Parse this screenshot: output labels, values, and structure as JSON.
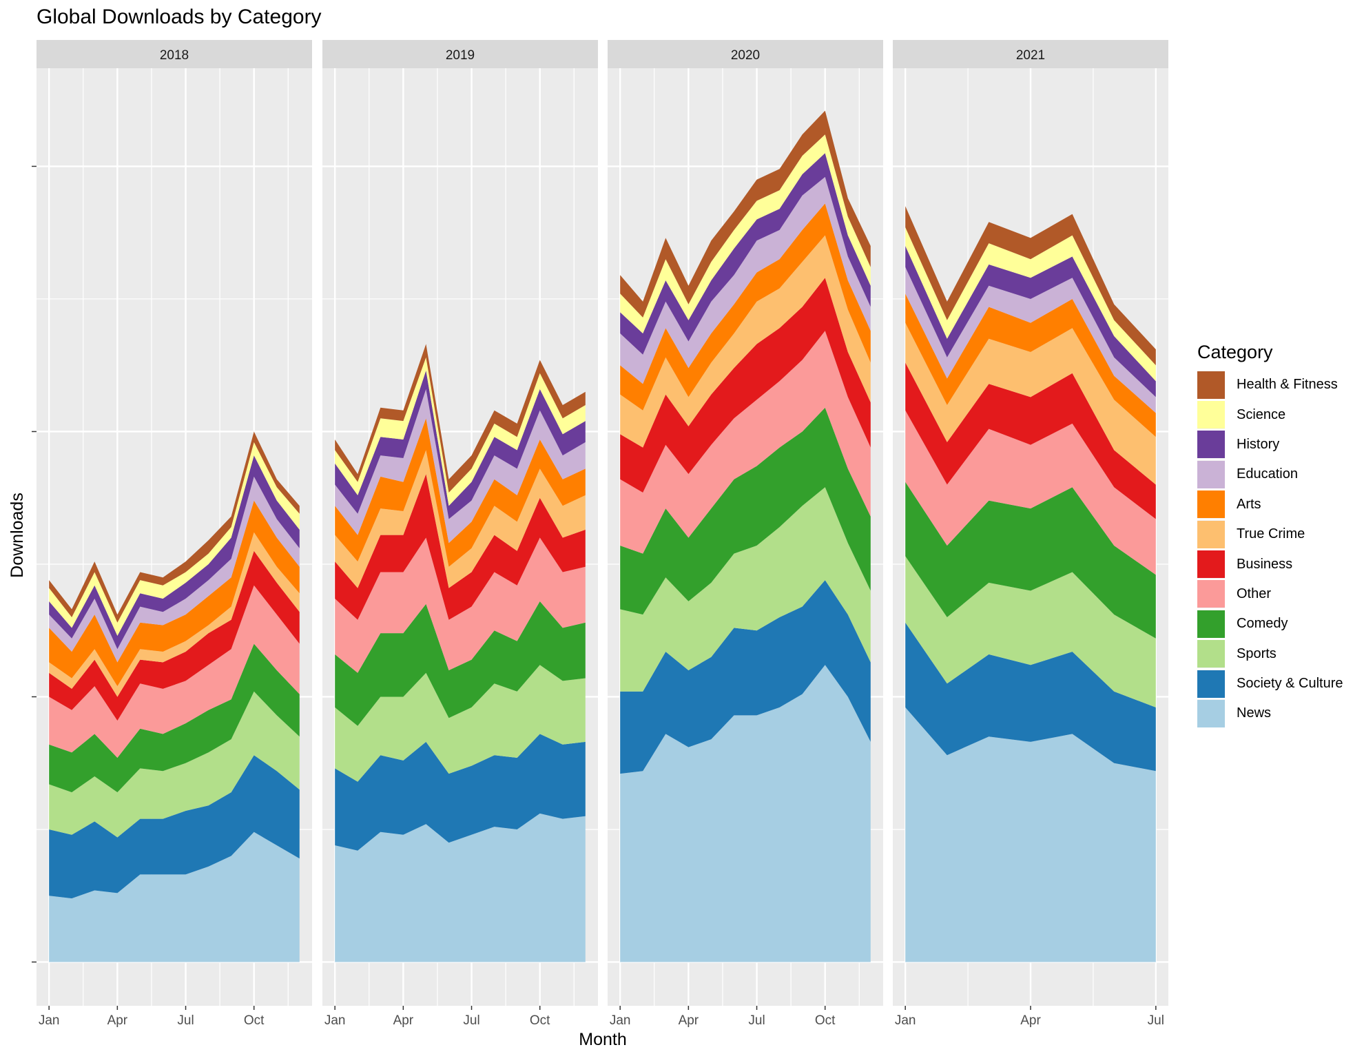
{
  "chart_data": {
    "type": "area",
    "stacked": true,
    "title": "Global Downloads by Category",
    "xlabel": "Month",
    "ylabel": "Downloads",
    "y_tick_labels_shown": false,
    "ylim": [
      -16.5,
      337
    ],
    "grid": true,
    "legend_position": "right",
    "legend_title": "Category",
    "categories": [
      "News",
      "Society & Culture",
      "Sports",
      "Comedy",
      "Other",
      "Business",
      "True Crime",
      "Arts",
      "Education",
      "History",
      "Science",
      "Health & Fitness"
    ],
    "colors": {
      "News": "#A6CEE3",
      "Society & Culture": "#1F78B4",
      "Sports": "#B2DF8A",
      "Comedy": "#33A02C",
      "Other": "#FB9A99",
      "Business": "#E31A1C",
      "True Crime": "#FDBF6F",
      "Arts": "#FF7F00",
      "Education": "#CAB2D6",
      "History": "#6A3D9A",
      "Science": "#FFFF99",
      "Health & Fitness": "#B15928"
    },
    "panels": [
      {
        "label": "2018",
        "months": [
          "Jan",
          "Feb",
          "Mar",
          "Apr",
          "May",
          "Jun",
          "Jul",
          "Aug",
          "Sep",
          "Oct",
          "Nov",
          "Dec"
        ],
        "x_ticks": [
          "Jan",
          "Apr",
          "Jul",
          "Oct"
        ],
        "series": [
          [
            25,
            24,
            27,
            26,
            33,
            33,
            33,
            36,
            40,
            49,
            44,
            39
          ],
          [
            25,
            24,
            26,
            21,
            21,
            21,
            24,
            23,
            24,
            29,
            28,
            26
          ],
          [
            17,
            16,
            17,
            17,
            19,
            18,
            18,
            20,
            20,
            24,
            21,
            20
          ],
          [
            15,
            15,
            16,
            13,
            15,
            14,
            15,
            16,
            15,
            18,
            17,
            16
          ],
          [
            18,
            16,
            18,
            14,
            17,
            17,
            16,
            17,
            19,
            22,
            21,
            19
          ],
          [
            9,
            8,
            10,
            9,
            9,
            10,
            11,
            12,
            11,
            13,
            12,
            12
          ],
          [
            4,
            4,
            4,
            4,
            4,
            4,
            4,
            3,
            5,
            7,
            6,
            7
          ],
          [
            13,
            10,
            13,
            9,
            10,
            10,
            10,
            11,
            11,
            12,
            11,
            10
          ],
          [
            5,
            5,
            6,
            5,
            6,
            5,
            6,
            6,
            7,
            9,
            7,
            7
          ],
          [
            5,
            4,
            5,
            5,
            5,
            5,
            6,
            6,
            8,
            8,
            7,
            7
          ],
          [
            5,
            4,
            5,
            5,
            5,
            5,
            4,
            4,
            4,
            5,
            5,
            6
          ],
          [
            3,
            3,
            4,
            3,
            3,
            3,
            4,
            5,
            4,
            4,
            3,
            3
          ]
        ]
      },
      {
        "label": "2019",
        "months": [
          "Jan",
          "Feb",
          "Mar",
          "Apr",
          "May",
          "Jun",
          "Jul",
          "Aug",
          "Sep",
          "Oct",
          "Nov",
          "Dec"
        ],
        "x_ticks": [
          "Jan",
          "Apr",
          "Jul",
          "Oct"
        ],
        "series": [
          [
            44,
            42,
            49,
            48,
            52,
            45,
            48,
            51,
            50,
            56,
            54,
            55
          ],
          [
            29,
            26,
            29,
            28,
            31,
            26,
            26,
            27,
            27,
            30,
            28,
            28
          ],
          [
            23,
            21,
            22,
            24,
            26,
            21,
            22,
            27,
            25,
            26,
            24,
            24
          ],
          [
            20,
            20,
            24,
            24,
            26,
            18,
            18,
            20,
            19,
            24,
            20,
            21
          ],
          [
            21,
            20,
            23,
            23,
            25,
            19,
            20,
            22,
            21,
            24,
            21,
            21
          ],
          [
            14,
            12,
            14,
            14,
            24,
            12,
            13,
            14,
            13,
            15,
            13,
            14
          ],
          [
            10,
            10,
            10,
            9,
            9,
            8,
            9,
            11,
            11,
            11,
            12,
            13
          ],
          [
            11,
            10,
            12,
            11,
            12,
            9,
            10,
            10,
            10,
            11,
            10,
            10
          ],
          [
            8,
            8,
            8,
            9,
            11,
            9,
            8,
            9,
            10,
            11,
            9,
            10
          ],
          [
            8,
            7,
            7,
            7,
            7,
            5,
            7,
            7,
            7,
            8,
            8,
            8
          ],
          [
            5,
            5,
            7,
            7,
            5,
            5,
            5,
            5,
            5,
            6,
            6,
            6
          ],
          [
            4,
            3,
            4,
            4,
            5,
            5,
            5,
            5,
            5,
            5,
            5,
            5
          ]
        ]
      },
      {
        "label": "2020",
        "months": [
          "Jan",
          "Feb",
          "Mar",
          "Apr",
          "May",
          "Jun",
          "Jul",
          "Aug",
          "Sep",
          "Oct",
          "Nov",
          "Dec"
        ],
        "x_ticks": [
          "Jan",
          "Apr",
          "Jul",
          "Oct"
        ],
        "series": [
          [
            71,
            72,
            86,
            81,
            84,
            93,
            93,
            96,
            101,
            112,
            100,
            83
          ],
          [
            31,
            30,
            31,
            29,
            31,
            33,
            32,
            34,
            33,
            32,
            31,
            30
          ],
          [
            31,
            29,
            28,
            26,
            28,
            28,
            32,
            34,
            38,
            35,
            27,
            27
          ],
          [
            24,
            23,
            26,
            24,
            28,
            28,
            30,
            30,
            28,
            30,
            28,
            28
          ],
          [
            25,
            23,
            24,
            24,
            24,
            23,
            25,
            25,
            27,
            29,
            27,
            26
          ],
          [
            17,
            17,
            19,
            18,
            19,
            19,
            21,
            20,
            20,
            20,
            17,
            17
          ],
          [
            15,
            14,
            14,
            11,
            12,
            13,
            16,
            15,
            17,
            16,
            16,
            15
          ],
          [
            11,
            10,
            11,
            11,
            11,
            11,
            11,
            11,
            12,
            12,
            11,
            12
          ],
          [
            12,
            11,
            10,
            10,
            12,
            11,
            12,
            11,
            13,
            10,
            9,
            9
          ],
          [
            8,
            8,
            8,
            8,
            8,
            10,
            8,
            8,
            8,
            9,
            8,
            8
          ],
          [
            7,
            6,
            8,
            6,
            7,
            7,
            7,
            7,
            7,
            7,
            7,
            7
          ],
          [
            7,
            6,
            8,
            7,
            8,
            7,
            8,
            8,
            8,
            9,
            7,
            8
          ]
        ]
      },
      {
        "label": "2021",
        "months": [
          "Jan",
          "Feb",
          "Mar",
          "Apr",
          "May",
          "Jun",
          "Jul"
        ],
        "x_ticks": [
          "Jan",
          "Apr",
          "Jul"
        ],
        "series": [
          [
            96,
            78,
            85,
            83,
            86,
            75,
            72
          ],
          [
            32,
            27,
            31,
            29,
            31,
            27,
            24
          ],
          [
            25,
            25,
            27,
            28,
            30,
            29,
            26
          ],
          [
            28,
            27,
            31,
            31,
            32,
            26,
            24
          ],
          [
            27,
            23,
            27,
            24,
            24,
            22,
            21
          ],
          [
            18,
            16,
            17,
            18,
            19,
            14,
            13
          ],
          [
            15,
            14,
            17,
            17,
            17,
            19,
            18
          ],
          [
            11,
            10,
            12,
            11,
            11,
            9,
            9
          ],
          [
            10,
            8,
            8,
            9,
            8,
            7,
            6
          ],
          [
            8,
            7,
            8,
            8,
            8,
            8,
            6
          ],
          [
            7,
            7,
            8,
            7,
            8,
            6,
            6
          ],
          [
            8,
            7,
            8,
            8,
            8,
            6,
            6
          ]
        ]
      }
    ]
  }
}
